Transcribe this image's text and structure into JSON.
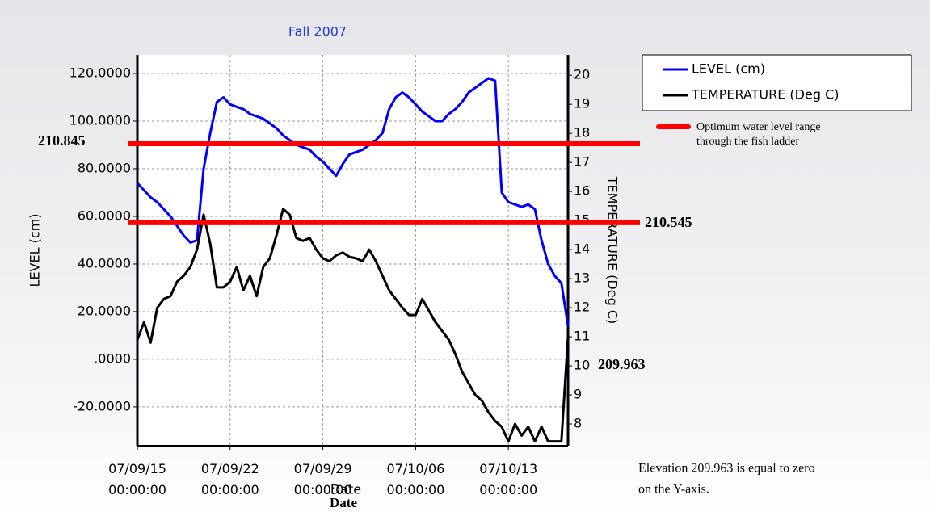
{
  "chart_data": {
    "type": "line",
    "title": "Fall 2007",
    "x_label": "Date",
    "y_label": "LEVEL (cm)",
    "y2_label": "TEMPERATURE (Deg C)",
    "x": [
      "07/09/15 00:00:00",
      "07/09/15 12:00:00",
      "07/09/16 00:00:00",
      "07/09/16 12:00:00",
      "07/09/17 00:00:00",
      "07/09/17 12:00:00",
      "07/09/18 00:00:00",
      "07/09/18 12:00:00",
      "07/09/19 00:00:00",
      "07/09/19 12:00:00",
      "07/09/20 00:00:00",
      "07/09/20 12:00:00",
      "07/09/21 00:00:00",
      "07/09/21 12:00:00",
      "07/09/22 00:00:00",
      "07/09/22 12:00:00",
      "07/09/23 00:00:00",
      "07/09/23 12:00:00",
      "07/09/24 00:00:00",
      "07/09/24 12:00:00",
      "07/09/25 00:00:00",
      "07/09/25 12:00:00",
      "07/09/26 00:00:00",
      "07/09/26 12:00:00",
      "07/09/27 00:00:00",
      "07/09/27 12:00:00",
      "07/09/28 00:00:00",
      "07/09/28 12:00:00",
      "07/09/29 00:00:00",
      "07/09/29 12:00:00",
      "07/09/30 00:00:00",
      "07/09/30 12:00:00",
      "07/10/01 00:00:00",
      "07/10/01 12:00:00",
      "07/10/02 00:00:00",
      "07/10/02 12:00:00",
      "07/10/03 00:00:00",
      "07/10/03 12:00:00",
      "07/10/04 00:00:00",
      "07/10/04 12:00:00",
      "07/10/05 00:00:00",
      "07/10/05 12:00:00",
      "07/10/06 00:00:00",
      "07/10/06 12:00:00",
      "07/10/07 00:00:00",
      "07/10/07 12:00:00",
      "07/10/08 00:00:00",
      "07/10/08 12:00:00",
      "07/10/09 00:00:00",
      "07/10/09 12:00:00",
      "07/10/10 00:00:00",
      "07/10/10 12:00:00",
      "07/10/11 00:00:00",
      "07/10/11 12:00:00",
      "07/10/12 00:00:00",
      "07/10/12 12:00:00",
      "07/10/13 00:00:00",
      "07/10/13 12:00:00",
      "07/10/14 00:00:00",
      "07/10/14 12:00:00",
      "07/10/15 00:00:00",
      "07/10/15 12:00:00",
      "07/10/16 00:00:00",
      "07/10/16 12:00:00",
      "07/10/17 00:00:00",
      "07/10/17 12:00:00"
    ],
    "series": [
      {
        "name": "LEVEL (cm)",
        "color": "#0000ff",
        "values": [
          74,
          71,
          68,
          66,
          63,
          60,
          56,
          52,
          49,
          50,
          80,
          95,
          108,
          110,
          107,
          106,
          105,
          103,
          102,
          101,
          99,
          97,
          94,
          92,
          90,
          89,
          88,
          85,
          83,
          80,
          77,
          82,
          86,
          87,
          88,
          90,
          92,
          95,
          105,
          110,
          112,
          110,
          107,
          104,
          102,
          100,
          100,
          103,
          105,
          108,
          112,
          114,
          116,
          118,
          117,
          70,
          66,
          65,
          64,
          65,
          63,
          50,
          40,
          35,
          32,
          14
        ]
      },
      {
        "name": "TEMPERATURE (Deg C)",
        "color": "#000000",
        "axis": "y2",
        "values": [
          10.9,
          11.5,
          10.8,
          12.0,
          12.3,
          12.4,
          12.9,
          13.1,
          13.4,
          14.0,
          15.2,
          14.2,
          12.7,
          12.7,
          12.9,
          13.4,
          12.6,
          13.1,
          12.4,
          13.4,
          13.7,
          14.5,
          15.4,
          15.2,
          14.4,
          14.3,
          14.4,
          14.0,
          13.7,
          13.6,
          13.8,
          13.9,
          13.75,
          13.7,
          13.6,
          14.0,
          13.6,
          13.1,
          12.6,
          12.3,
          12.0,
          11.75,
          11.75,
          12.3,
          11.9,
          11.5,
          11.2,
          10.9,
          10.4,
          9.8,
          9.4,
          9.0,
          8.8,
          8.4,
          8.1,
          7.9,
          7.4,
          8.0,
          7.6,
          7.9,
          7.4,
          7.9,
          7.4,
          7.4,
          7.4,
          11.0
        ]
      }
    ],
    "xlim": [
      "07/09/15 00:00:00",
      "07/10/17 12:00:00"
    ],
    "xticks": [
      "07/09/15 00:00:00",
      "07/09/22 00:00:00",
      "07/09/29 00:00:00",
      "07/10/06 00:00:00",
      "07/10/13 00:00:00"
    ],
    "ylim": [
      -36.3,
      127.8
    ],
    "yticks": [
      {
        "value": -20,
        "label": "-20.0000"
      },
      {
        "value": 0,
        "label": ".0000"
      },
      {
        "value": 20,
        "label": "20.0000"
      },
      {
        "value": 40,
        "label": "40.0000"
      },
      {
        "value": 60,
        "label": "60.0000"
      },
      {
        "value": 80,
        "label": "80.0000"
      },
      {
        "value": 100,
        "label": "100.0000"
      },
      {
        "value": 120,
        "label": "120.0000"
      }
    ],
    "y2lim": [
      7.25,
      20.7
    ],
    "y2ticks": [
      8,
      9,
      10,
      11,
      12,
      13,
      14,
      15,
      16,
      17,
      18,
      19,
      20
    ],
    "grid": true,
    "legend": "top-right",
    "optimum_range": {
      "name_lines": [
        "Optimum water level range",
        "through the fish ladder"
      ],
      "color": "#ff0000",
      "lines": [
        {
          "value": 90.5,
          "label": "210.845"
        },
        {
          "value": 57.3,
          "label": "210.545"
        }
      ]
    },
    "zero_label": "209.963",
    "note_lines": [
      "Elevation 209.963 is equal to zero",
      "on the Y-axis."
    ],
    "x_label_bold": "Date"
  }
}
